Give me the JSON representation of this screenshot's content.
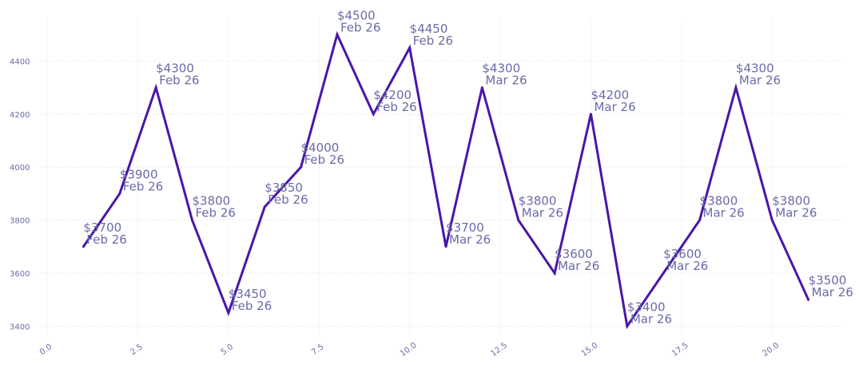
{
  "chart_data": {
    "type": "line",
    "title": "",
    "xlabel": "",
    "ylabel": "",
    "xlim": [
      -0.2,
      22
    ],
    "ylim": [
      3365,
      4555
    ],
    "x_ticks": [
      0,
      2.5,
      5,
      7.5,
      10,
      12.5,
      15,
      17.5,
      20
    ],
    "x_tick_labels": [
      "0.0",
      "2.5",
      "5.0",
      "7.5",
      "10.0",
      "12.5",
      "15.0",
      "17.5",
      "20.0"
    ],
    "y_ticks": [
      3400,
      3600,
      3800,
      4000,
      4200,
      4400
    ],
    "y_tick_labels": [
      "3400",
      "3600",
      "3800",
      "4000",
      "4200",
      "4400"
    ],
    "grid": true,
    "line_color": "#4a16a8",
    "label_color": "#6b6ba8",
    "series": [
      {
        "x": [
          1,
          2,
          3,
          4,
          5,
          6,
          7,
          8,
          9,
          10,
          11,
          12,
          13,
          14,
          15,
          16,
          17,
          18,
          19,
          20,
          21
        ],
        "values": [
          3700,
          3900,
          4300,
          3800,
          3450,
          3850,
          4000,
          4500,
          4200,
          4450,
          3700,
          4300,
          3800,
          3600,
          4200,
          3400,
          3600,
          3800,
          4300,
          3800,
          3500
        ],
        "labels": [
          [
            "$3700",
            "Feb 26"
          ],
          [
            "$3900",
            "Feb 26"
          ],
          [
            "$4300",
            "Feb 26"
          ],
          [
            "$3800",
            "Feb 26"
          ],
          [
            "$3450",
            "Feb 26"
          ],
          [
            "$3850",
            "Feb 26"
          ],
          [
            "$4000",
            "Feb 26"
          ],
          [
            "$4500",
            "Feb 26"
          ],
          [
            "$4200",
            "Feb 26"
          ],
          [
            "$4450",
            "Feb 26"
          ],
          [
            "$3700",
            "Mar 26"
          ],
          [
            "$4300",
            "Mar 26"
          ],
          [
            "$3800",
            "Mar 26"
          ],
          [
            "$3600",
            "Mar 26"
          ],
          [
            "$4200",
            "Mar 26"
          ],
          [
            "$3400",
            "Mar 26"
          ],
          [
            "$3600",
            "Mar 26"
          ],
          [
            "$3800",
            "Mar 26"
          ],
          [
            "$4300",
            "Mar 26"
          ],
          [
            "$3800",
            "Mar 26"
          ],
          [
            "$3500",
            "Mar 26"
          ]
        ]
      }
    ]
  }
}
